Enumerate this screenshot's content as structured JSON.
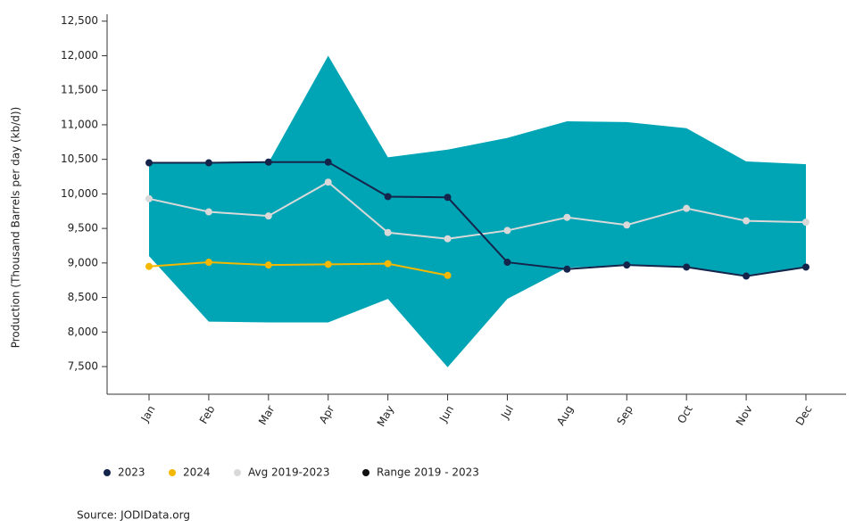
{
  "chart_data": {
    "type": "line",
    "y_label": "Production (Thousand Barrels per day (kb/d))",
    "source": "Source: JODIData.org",
    "categories": [
      "Jan",
      "Feb",
      "Mar",
      "Apr",
      "May",
      "Jun",
      "Jul",
      "Aug",
      "Sep",
      "Oct",
      "Nov",
      "Dec"
    ],
    "ylim": [
      7100,
      12600
    ],
    "yticks": [
      {
        "value": 7500,
        "label": "7,500"
      },
      {
        "value": 8000,
        "label": "8,000"
      },
      {
        "value": 8500,
        "label": "8,500"
      },
      {
        "value": 9000,
        "label": "9,000"
      },
      {
        "value": 9500,
        "label": "9,500"
      },
      {
        "value": 10000,
        "label": "10,000"
      },
      {
        "value": 10500,
        "label": "10,500"
      },
      {
        "value": 11000,
        "label": "11,000"
      },
      {
        "value": 11500,
        "label": "11,500"
      },
      {
        "value": 12000,
        "label": "12,000"
      },
      {
        "value": 12500,
        "label": "12,500"
      }
    ],
    "series": [
      {
        "name": "2023",
        "color": "#14244a",
        "values": [
          10450,
          10450,
          10460,
          10460,
          9960,
          9950,
          9010,
          8910,
          8970,
          8940,
          8810,
          8940
        ]
      },
      {
        "name": "2024",
        "color": "#f5b800",
        "values": [
          8950,
          9010,
          8970,
          8980,
          8990,
          8820,
          null,
          null,
          null,
          null,
          null,
          null
        ]
      },
      {
        "name": "Avg 2019-2023",
        "color": "#d9d9d9",
        "values": [
          9930,
          9740,
          9680,
          10170,
          9440,
          9350,
          9470,
          9660,
          9550,
          9790,
          9610,
          9590
        ]
      },
      {
        "name": "Range 2019 - 2023",
        "color": "#00a5b5",
        "marker_color": "#111111",
        "type": "range",
        "upper": [
          10450,
          10450,
          10450,
          12000,
          10530,
          10640,
          10810,
          11050,
          11040,
          10950,
          10470,
          10430
        ],
        "lower": [
          9100,
          8150,
          8140,
          8140,
          8480,
          7490,
          8480,
          8930,
          8970,
          8940,
          8820,
          8950
        ]
      }
    ]
  }
}
